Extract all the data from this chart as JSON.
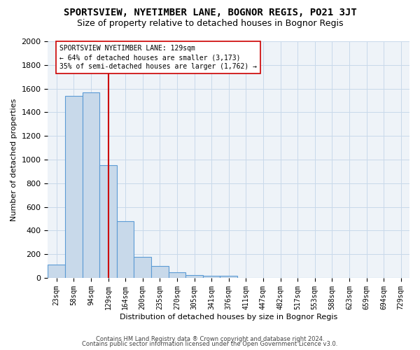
{
  "title": "SPORTSVIEW, NYETIMBER LANE, BOGNOR REGIS, PO21 3JT",
  "subtitle": "Size of property relative to detached houses in Bognor Regis",
  "xlabel": "Distribution of detached houses by size in Bognor Regis",
  "ylabel": "Number of detached properties",
  "footnote1": "Contains HM Land Registry data ® Crown copyright and database right 2024.",
  "footnote2": "Contains public sector information licensed under the Open Government Licence v3.0.",
  "bar_labels": [
    "23sqm",
    "58sqm",
    "94sqm",
    "129sqm",
    "164sqm",
    "200sqm",
    "235sqm",
    "270sqm",
    "305sqm",
    "341sqm",
    "376sqm",
    "411sqm",
    "447sqm",
    "482sqm",
    "517sqm",
    "553sqm",
    "588sqm",
    "623sqm",
    "659sqm",
    "694sqm",
    "729sqm"
  ],
  "bar_values": [
    110,
    1540,
    1570,
    950,
    480,
    180,
    100,
    45,
    25,
    15,
    15,
    0,
    0,
    0,
    0,
    0,
    0,
    0,
    0,
    0,
    0
  ],
  "bar_color": "#c8d9ea",
  "bar_edge_color": "#5b9bd5",
  "red_line_x": 3,
  "red_line_color": "#cc0000",
  "annotation_line1": "SPORTSVIEW NYETIMBER LANE: 129sqm",
  "annotation_line2": "← 64% of detached houses are smaller (3,173)",
  "annotation_line3": "35% of semi-detached houses are larger (1,762) →",
  "annotation_box_color": "#ffffff",
  "annotation_box_edge": "#cc0000",
  "ylim": [
    0,
    2000
  ],
  "yticks": [
    0,
    200,
    400,
    600,
    800,
    1000,
    1200,
    1400,
    1600,
    1800,
    2000
  ],
  "grid_color": "#c8d9ea",
  "bg_color": "#eef3f8",
  "title_fontsize": 10,
  "subtitle_fontsize": 9,
  "annotation_fontsize": 7,
  "label_fontsize": 8,
  "tick_fontsize": 7,
  "footnote_fontsize": 6
}
